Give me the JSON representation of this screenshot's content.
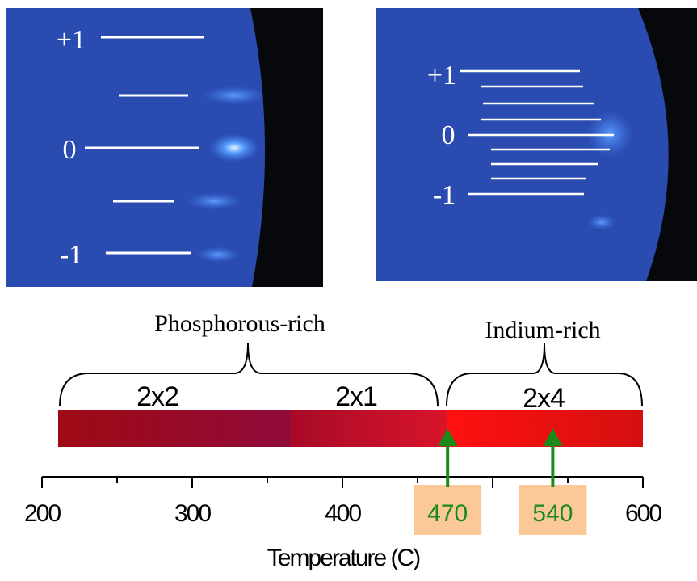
{
  "left_image": {
    "labels": [
      "+1",
      "0",
      "-1"
    ]
  },
  "right_image": {
    "labels": [
      "+1",
      "0",
      "-1"
    ]
  },
  "phases": {
    "phosphorous": "Phosphorous-rich",
    "indium": "Indium-rich",
    "reconstructions": [
      "2x2",
      "2x1",
      "2x4"
    ]
  },
  "axis": {
    "label": "Temperature (C)",
    "lim": [
      200,
      600
    ],
    "ticks": [
      200,
      300,
      400,
      600
    ],
    "markers": [
      470,
      540
    ]
  }
}
